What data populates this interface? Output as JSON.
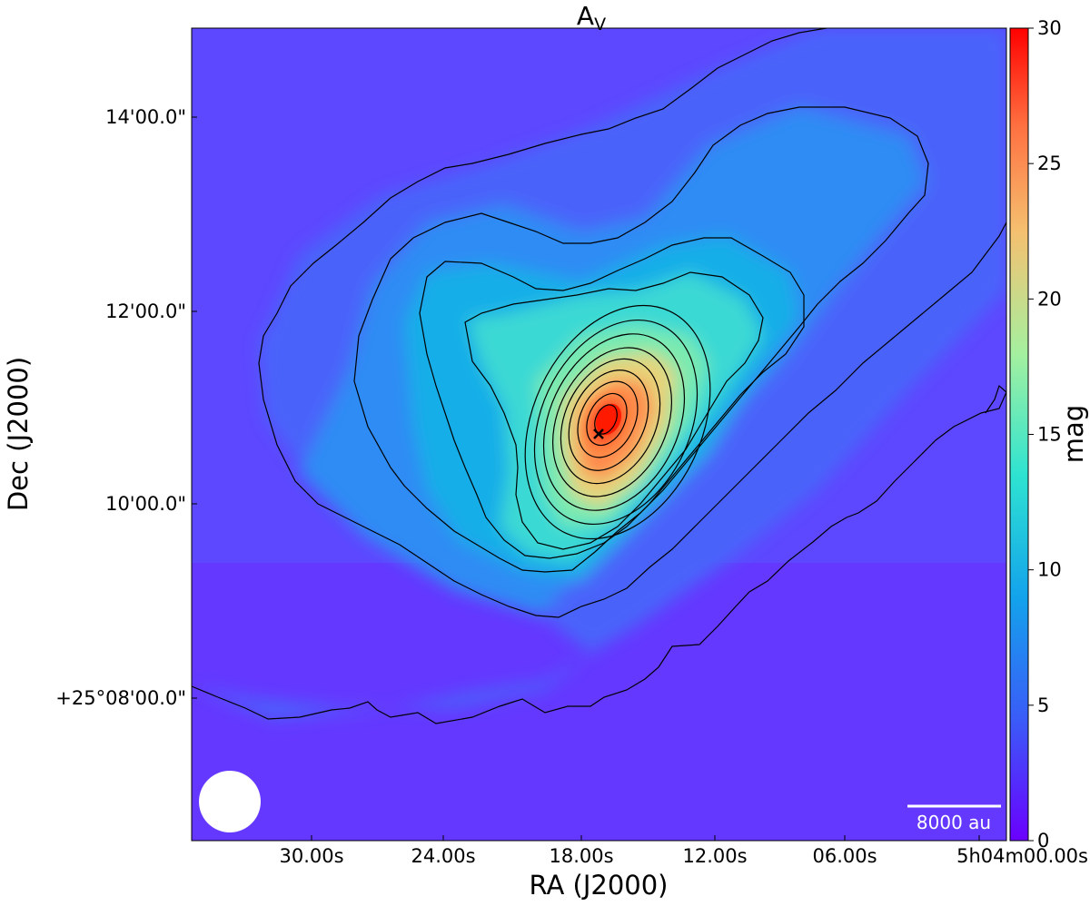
{
  "chart_data": {
    "type": "heatmap",
    "title": "A",
    "title_subscript": "V",
    "xlabel": "RA (J2000)",
    "ylabel": "Dec (J2000)",
    "x_ticks": [
      "30.00s",
      "24.00s",
      "18.00s",
      "12.00s",
      "06.00s",
      "5h04m00.00s"
    ],
    "y_ticks": [
      "14'00.0\"",
      "12'00.0\"",
      "10'00.0\"",
      "+25°08'00.0\""
    ],
    "colorbar": {
      "label": "mag",
      "range": [
        0,
        30
      ],
      "ticks": [
        "0",
        "5",
        "10",
        "15",
        "20",
        "25",
        "30"
      ],
      "colormap": "rainbow"
    },
    "peak_marker": {
      "symbol": "×",
      "value_mag": 29
    },
    "contours": "black contour lines at increasing extinction levels around the peak",
    "beam": "white filled circle, lower-left",
    "scalebar_label": "8000 au",
    "background_color": "#6a2cff",
    "peak_color": "#ff2a00"
  }
}
